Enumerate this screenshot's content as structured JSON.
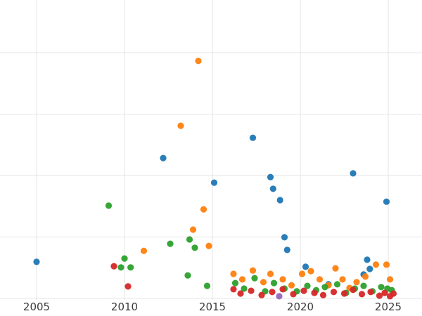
{
  "chart_data": {
    "type": "scatter",
    "title": "",
    "xlabel": "",
    "ylabel": "",
    "legend": "none",
    "grid": true,
    "grid_color": "#e5e5e5",
    "background_color": "#ffffff",
    "tick_label_color": "#3b3b3b",
    "xlim": [
      2002.9,
      2026.9
    ],
    "ylim": [
      0,
      97
    ],
    "x_ticks": [
      {
        "label": "2005",
        "year": 2005
      },
      {
        "label": "2010",
        "year": 2010
      },
      {
        "label": "2015",
        "year": 2015
      },
      {
        "label": "2020",
        "year": 2020
      },
      {
        "label": "2025",
        "year": 2025
      }
    ],
    "y_gridline_values": [
      0,
      20,
      40,
      60,
      80
    ],
    "point_radius": 4.6,
    "series": [
      {
        "name": "series-blue",
        "color": "#1f77b4",
        "points": [
          [
            2005.0,
            11.9
          ],
          [
            2012.2,
            45.7
          ],
          [
            2015.1,
            37.7
          ],
          [
            2017.3,
            52.3
          ],
          [
            2018.3,
            39.5
          ],
          [
            2018.45,
            35.7
          ],
          [
            2018.85,
            32.0
          ],
          [
            2019.1,
            19.9
          ],
          [
            2019.25,
            15.8
          ],
          [
            2020.3,
            10.3
          ],
          [
            2021.6,
            4.6
          ],
          [
            2023.0,
            40.7
          ],
          [
            2023.6,
            7.8
          ],
          [
            2023.8,
            12.6
          ],
          [
            2023.95,
            9.6
          ],
          [
            2024.9,
            31.5
          ]
        ]
      },
      {
        "name": "series-orange",
        "color": "#ff7f0e",
        "points": [
          [
            2011.1,
            15.5
          ],
          [
            2013.2,
            56.2
          ],
          [
            2013.9,
            22.4
          ],
          [
            2014.2,
            77.3
          ],
          [
            2014.5,
            29.0
          ],
          [
            2014.8,
            17.1
          ],
          [
            2016.2,
            8.0
          ],
          [
            2016.7,
            6.2
          ],
          [
            2017.3,
            9.1
          ],
          [
            2017.9,
            5.3
          ],
          [
            2018.3,
            8.0
          ],
          [
            2019.0,
            6.2
          ],
          [
            2019.5,
            4.3
          ],
          [
            2020.1,
            8.0
          ],
          [
            2020.6,
            8.9
          ],
          [
            2021.1,
            6.2
          ],
          [
            2021.6,
            4.3
          ],
          [
            2022.0,
            9.8
          ],
          [
            2022.4,
            6.2
          ],
          [
            2022.8,
            3.4
          ],
          [
            2023.2,
            5.3
          ],
          [
            2023.7,
            7.1
          ],
          [
            2024.3,
            11.0
          ],
          [
            2024.9,
            11.0
          ],
          [
            2025.1,
            6.2
          ]
        ]
      },
      {
        "name": "series-green",
        "color": "#2ca02c",
        "points": [
          [
            2009.1,
            30.2
          ],
          [
            2009.8,
            10.1
          ],
          [
            2010.0,
            13.0
          ],
          [
            2010.35,
            10.1
          ],
          [
            2012.6,
            17.8
          ],
          [
            2013.6,
            7.5
          ],
          [
            2013.7,
            19.2
          ],
          [
            2014.0,
            16.5
          ],
          [
            2014.7,
            4.1
          ],
          [
            2016.3,
            5.0
          ],
          [
            2016.8,
            3.2
          ],
          [
            2017.4,
            6.6
          ],
          [
            2018.0,
            2.3
          ],
          [
            2018.5,
            5.0
          ],
          [
            2019.1,
            3.2
          ],
          [
            2019.8,
            2.3
          ],
          [
            2020.4,
            4.1
          ],
          [
            2020.9,
            2.7
          ],
          [
            2021.4,
            3.7
          ],
          [
            2022.1,
            4.6
          ],
          [
            2022.6,
            1.8
          ],
          [
            2023.1,
            3.2
          ],
          [
            2023.6,
            4.1
          ],
          [
            2024.1,
            2.3
          ],
          [
            2024.6,
            3.7
          ],
          [
            2024.95,
            3.2
          ],
          [
            2025.2,
            2.7
          ]
        ]
      },
      {
        "name": "series-red",
        "color": "#d62728",
        "points": [
          [
            2009.4,
            10.5
          ],
          [
            2010.2,
            3.9
          ],
          [
            2016.2,
            3.0
          ],
          [
            2016.6,
            1.6
          ],
          [
            2017.2,
            2.5
          ],
          [
            2017.8,
            1.1
          ],
          [
            2018.4,
            2.1
          ],
          [
            2019.0,
            3.0
          ],
          [
            2019.6,
            1.4
          ],
          [
            2020.2,
            2.5
          ],
          [
            2020.8,
            1.8
          ],
          [
            2021.3,
            1.1
          ],
          [
            2021.9,
            2.1
          ],
          [
            2022.5,
            1.6
          ],
          [
            2023.0,
            2.8
          ],
          [
            2023.5,
            1.4
          ],
          [
            2024.0,
            2.1
          ],
          [
            2024.5,
            0.9
          ],
          [
            2024.8,
            1.8
          ],
          [
            2025.1,
            0.7
          ],
          [
            2025.3,
            1.6
          ]
        ]
      },
      {
        "name": "series-purple",
        "color": "#9467bd",
        "points": [
          [
            2018.8,
            0.7
          ]
        ]
      }
    ]
  }
}
